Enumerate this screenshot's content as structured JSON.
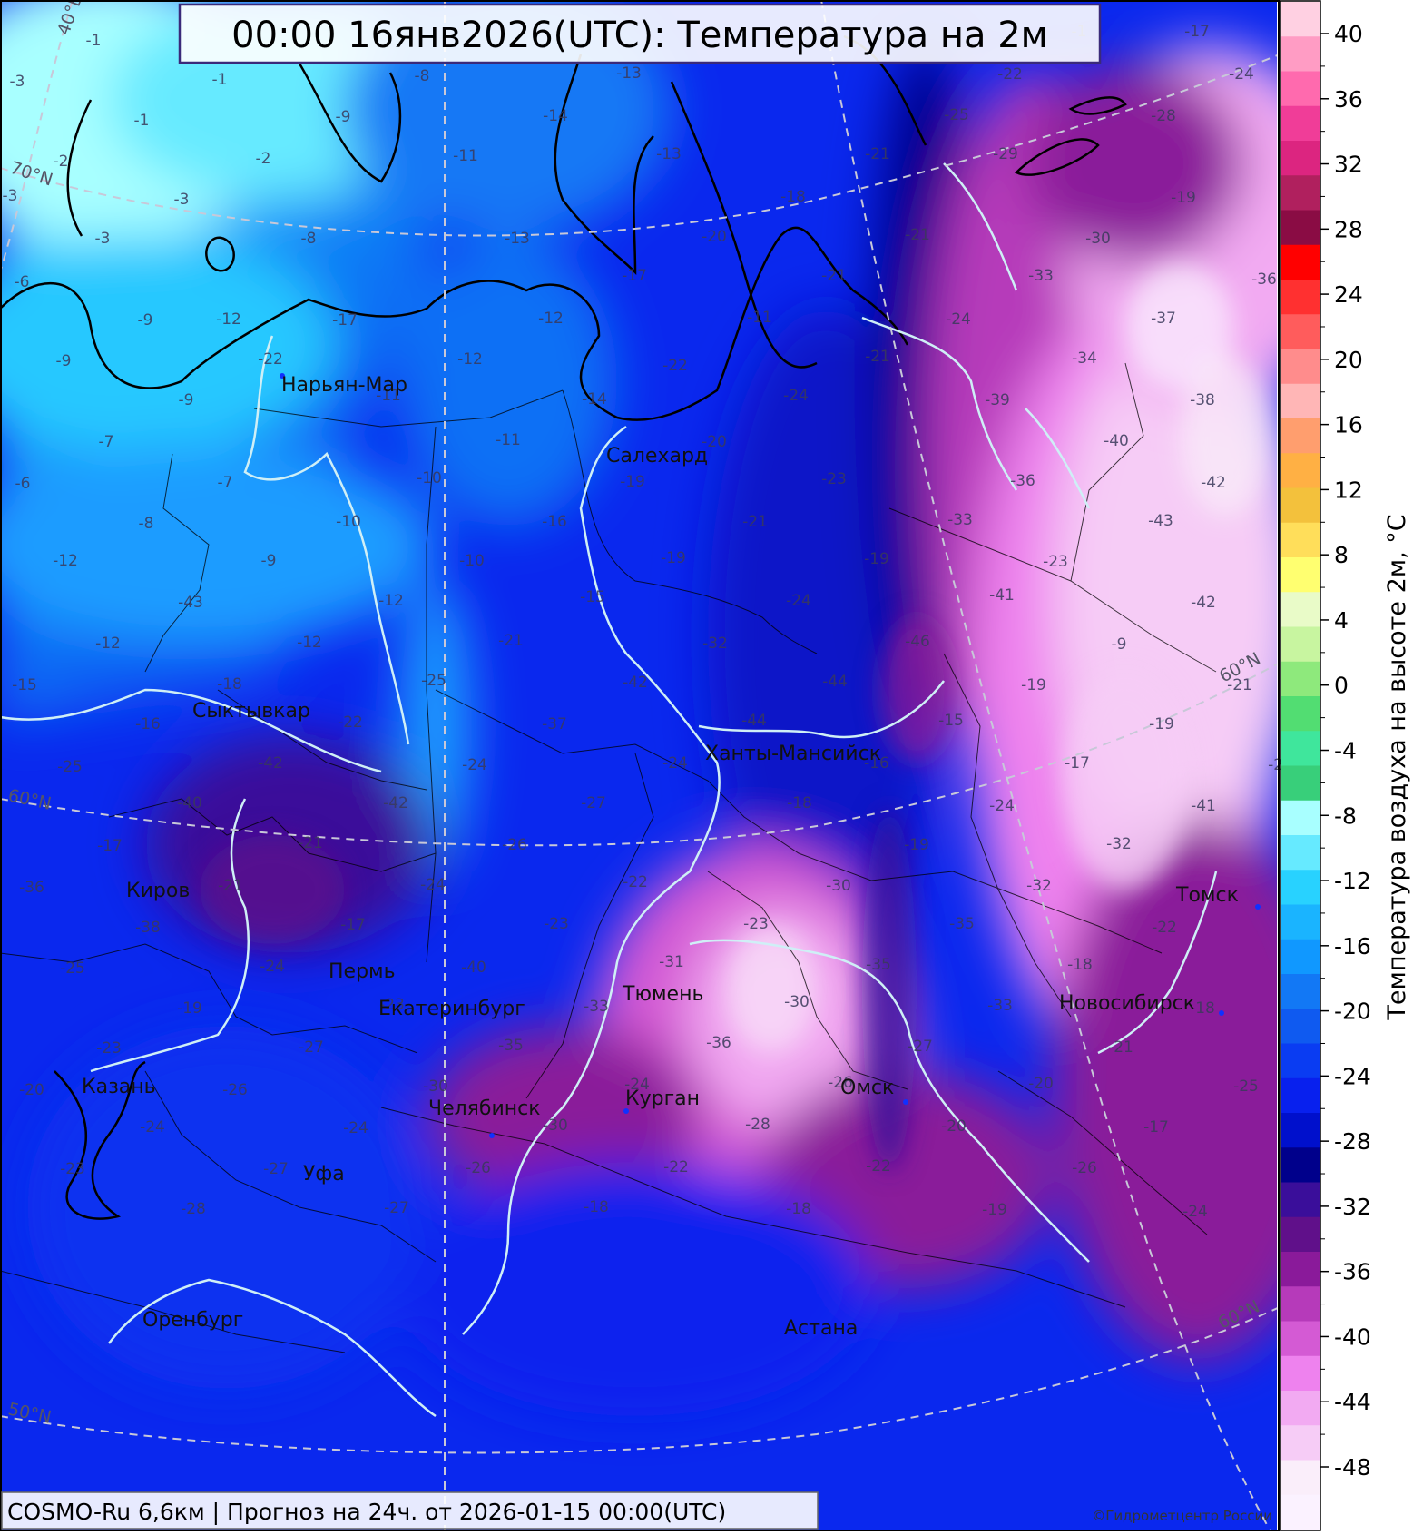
{
  "title": "00:00 16янв2026(UTC): Температура на 2м",
  "footer": "COSMO-Ru 6,6км | Прогноз на  24ч. от 2026-01-15 00:00(UTC)",
  "copyright": "©Гидрометцентр России",
  "colorbar": {
    "label": "Температура воздуха на высоте 2м, °C",
    "ticks": [
      "40",
      "36",
      "32",
      "28",
      "24",
      "20",
      "16",
      "12",
      "8",
      "4",
      "0",
      "-4",
      "-8",
      "-12",
      "-16",
      "-20",
      "-24",
      "-28",
      "-32",
      "-36",
      "-40",
      "-44",
      "-48"
    ],
    "colors": [
      "#ffd0e2",
      "#ff9cc4",
      "#ff6aae",
      "#f03d98",
      "#dc2580",
      "#b0205e",
      "#8a0c44",
      "#ff0000",
      "#ff3030",
      "#ff5c5c",
      "#ff8c8c",
      "#ffb6b6",
      "#ff9e6e",
      "#ffb044",
      "#f3c13c",
      "#ffde5a",
      "#ffff70",
      "#e9fbc8",
      "#c8f5a0",
      "#8ee97c",
      "#52dd72",
      "#3fe69c",
      "#38cf7a",
      "#a8ffff",
      "#66eaff",
      "#28d2ff",
      "#1ab4ff",
      "#1098ff",
      "#1278f5",
      "#0f5af0",
      "#0a3cf2",
      "#0820ee",
      "#0010cc",
      "#00008b",
      "#3a0e9a",
      "#60108a",
      "#8a1a9a",
      "#b63aba",
      "#d45ad4",
      "#ee82ee",
      "#f2aaf2",
      "#f6ccf6",
      "#faeefa",
      "#fbf2ff"
    ]
  },
  "gridlabels": [
    "40°E",
    "70°N",
    "60°N",
    "60°N",
    "50°N",
    "60°N"
  ],
  "cities": [
    "Нарьян-Мар",
    "Салехард",
    "Сыктывкар",
    "Ханты-Мансийск",
    "Киров",
    "Пермь",
    "Екатеринбург",
    "Тюмень",
    "Казань",
    "Челябинск",
    "Курган",
    "Омск",
    "Уфа",
    "Оренбург",
    "Астана",
    "Томск",
    "Новосибирск"
  ],
  "values": [
    "-1",
    "-1",
    "-3",
    "-1",
    "-8",
    "-13",
    "-22",
    "-24",
    "-17",
    "-2",
    "-3",
    "-14",
    "-9",
    "-1",
    "-25",
    "-28",
    "-21",
    "-11",
    "-13",
    "-2",
    "-29",
    "-3",
    "-18",
    "-19",
    "-6",
    "-3",
    "-8",
    "-20",
    "-21",
    "-30",
    "-13",
    "-17",
    "-21",
    "-33",
    "-36",
    "-9",
    "-12",
    "-17",
    "-11",
    "-24",
    "-9",
    "-22",
    "-12",
    "-22",
    "-12",
    "-21",
    "-37",
    "-34",
    "-11",
    "-14",
    "-24",
    "-9",
    "-7",
    "-11",
    "-20",
    "-38",
    "-39",
    "-40",
    "-6",
    "-7",
    "-10",
    "-19",
    "-23",
    "-36",
    "-42",
    "-8",
    "-10",
    "-16",
    "-21",
    "-33",
    "-43",
    "-12",
    "-9",
    "-10",
    "-19",
    "-19",
    "-23",
    "-43",
    "-12",
    "-15",
    "-24",
    "-41",
    "-42",
    "-12",
    "-12",
    "-21",
    "-32",
    "-46",
    "-9",
    "-15",
    "-18",
    "-25",
    "-42",
    "-44",
    "-19",
    "-21",
    "-16",
    "-22",
    "-37",
    "-44",
    "-15",
    "-19",
    "-25",
    "-42",
    "-24",
    "-24",
    "-16",
    "-17",
    "-26",
    "-40",
    "-42",
    "-27",
    "-18",
    "-24",
    "-41",
    "-17",
    "-21",
    "-26",
    "-19",
    "-32",
    "-36",
    "-21",
    "-24",
    "-22",
    "-30",
    "-32",
    "-38",
    "-17",
    "-23",
    "-23",
    "-35",
    "-22",
    "-25",
    "-24",
    "-40",
    "-31",
    "-35",
    "-18",
    "-19",
    "-23",
    "-33",
    "-30",
    "-33",
    "-18",
    "-23",
    "-27",
    "-35",
    "-36",
    "-27",
    "-21",
    "-20",
    "-26",
    "-30",
    "-24",
    "-26",
    "-20",
    "-25",
    "-24",
    "-24",
    "-30",
    "-28",
    "-20",
    "-17",
    "-23",
    "-27",
    "-26",
    "-22",
    "-22",
    "-26",
    "-28",
    "-27",
    "-18",
    "-18",
    "-19",
    "-24",
    "-26",
    "-28",
    "-17",
    "-19",
    "-19",
    "-24",
    "-27",
    "-13",
    "-18",
    "-18",
    "-19",
    "-21",
    "-24",
    "-18",
    "-19",
    "-22",
    "-30"
  ]
}
